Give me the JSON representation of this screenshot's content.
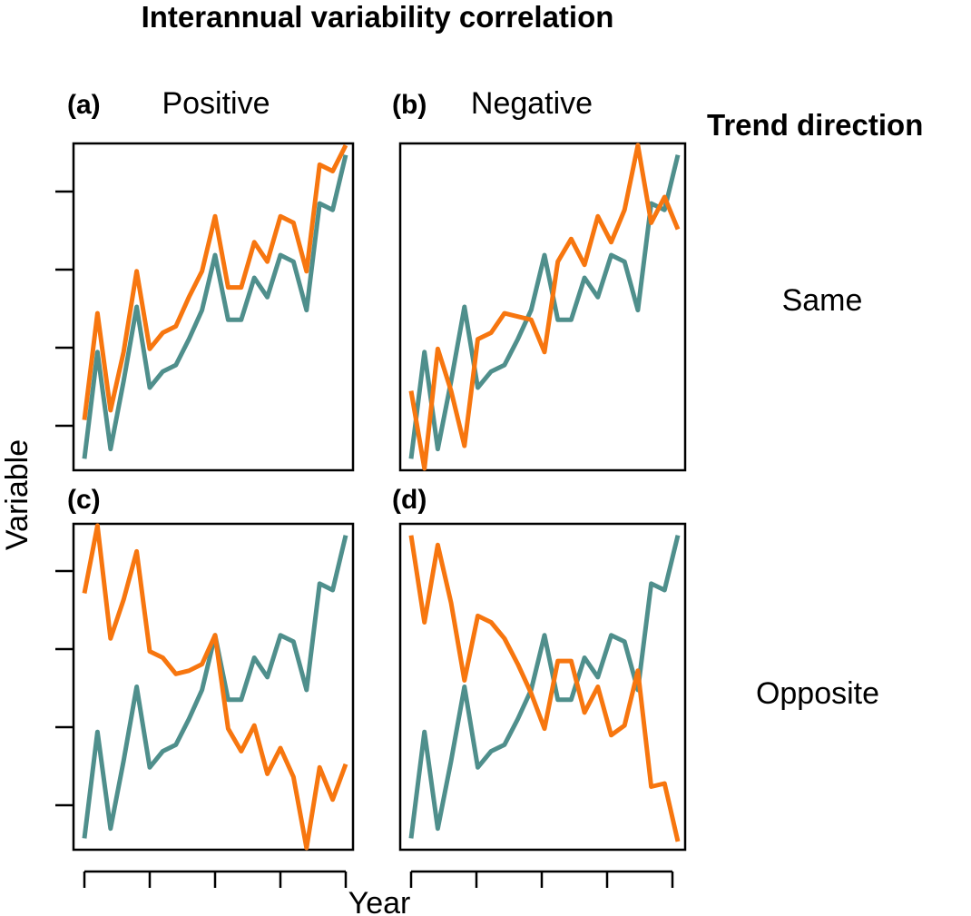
{
  "figure": {
    "title": "Interannual variability correlation",
    "right_header": "Trend direction",
    "col_labels": [
      "Positive",
      "Negative"
    ],
    "row_labels": [
      "Same",
      "Opposite"
    ],
    "xlabel": "Year",
    "ylabel": "Variable"
  },
  "colors": {
    "teal": "#4f8f8c",
    "orange": "#f7760f"
  },
  "chart_data": [
    {
      "type": "line",
      "panel": "(a)",
      "xlim": [
        1,
        21
      ],
      "ylim": [
        0,
        100
      ],
      "x": [
        1,
        2,
        3,
        4,
        5,
        6,
        7,
        8,
        9,
        10,
        11,
        12,
        13,
        14,
        15,
        16,
        17,
        18,
        19,
        20,
        21
      ],
      "series": [
        {
          "color": "teal",
          "values": [
            3,
            36,
            6,
            27,
            50,
            25,
            30,
            32,
            40,
            49,
            66,
            46,
            46,
            59,
            53,
            66,
            64,
            49,
            82,
            80,
            97
          ]
        },
        {
          "color": "orange",
          "values": [
            15,
            48,
            18,
            36,
            61,
            37,
            42,
            44,
            53,
            61,
            78,
            56,
            56,
            70,
            64,
            78,
            76,
            61,
            94,
            92,
            100
          ]
        }
      ]
    },
    {
      "type": "line",
      "panel": "(b)",
      "xlim": [
        1,
        21
      ],
      "ylim": [
        0,
        100
      ],
      "x": [
        1,
        2,
        3,
        4,
        5,
        6,
        7,
        8,
        9,
        10,
        11,
        12,
        13,
        14,
        15,
        16,
        17,
        18,
        19,
        20,
        21
      ],
      "series": [
        {
          "color": "teal",
          "values": [
            3,
            36,
            6,
            27,
            50,
            25,
            30,
            32,
            40,
            49,
            66,
            46,
            46,
            59,
            53,
            66,
            64,
            49,
            82,
            80,
            97
          ]
        },
        {
          "color": "orange",
          "values": [
            24,
            0,
            37,
            24,
            7,
            40,
            42,
            48,
            47,
            46,
            36,
            64,
            71,
            63,
            78,
            70,
            80,
            100,
            76,
            84,
            74
          ]
        }
      ]
    },
    {
      "type": "line",
      "panel": "(c)",
      "xlim": [
        1,
        21
      ],
      "ylim": [
        0,
        100
      ],
      "x": [
        1,
        2,
        3,
        4,
        5,
        6,
        7,
        8,
        9,
        10,
        11,
        12,
        13,
        14,
        15,
        16,
        17,
        18,
        19,
        20,
        21
      ],
      "series": [
        {
          "color": "teal",
          "values": [
            3,
            36,
            6,
            27,
            50,
            25,
            30,
            32,
            40,
            49,
            66,
            46,
            46,
            59,
            53,
            66,
            64,
            49,
            82,
            80,
            97
          ]
        },
        {
          "color": "orange",
          "values": [
            79,
            100,
            65,
            77,
            92,
            61,
            59,
            54,
            55,
            57,
            66,
            37,
            30,
            38,
            23,
            31,
            22,
            0,
            25,
            15,
            26
          ]
        }
      ]
    },
    {
      "type": "line",
      "panel": "(d)",
      "xlim": [
        1,
        21
      ],
      "ylim": [
        0,
        100
      ],
      "x": [
        1,
        2,
        3,
        4,
        5,
        6,
        7,
        8,
        9,
        10,
        11,
        12,
        13,
        14,
        15,
        16,
        17,
        18,
        19,
        20,
        21
      ],
      "series": [
        {
          "color": "teal",
          "values": [
            3,
            36,
            6,
            27,
            50,
            25,
            30,
            32,
            40,
            49,
            66,
            46,
            46,
            59,
            53,
            66,
            64,
            49,
            82,
            80,
            97
          ]
        },
        {
          "color": "orange",
          "values": [
            97,
            70,
            94,
            76,
            52,
            72,
            70,
            65,
            57,
            48,
            37,
            58,
            58,
            42,
            50,
            35,
            38,
            55,
            19,
            20,
            2
          ]
        }
      ]
    }
  ]
}
